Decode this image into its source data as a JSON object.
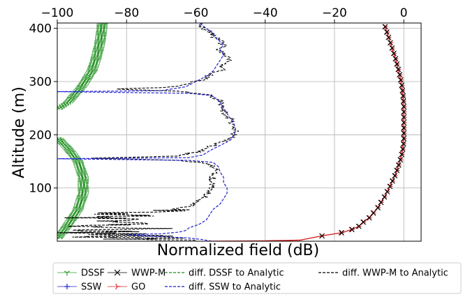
{
  "chart_data": {
    "type": "line",
    "title": "",
    "xlabel": "Normalized field (dB)",
    "ylabel": "Altitude (m)",
    "xlim": [
      -100,
      5
    ],
    "ylim": [
      0,
      410
    ],
    "x_axis_position": "top",
    "grid": true,
    "legend_placement": "below",
    "x_ticks": [
      {
        "value": -100,
        "label": "−100"
      },
      {
        "value": -80,
        "label": "−80"
      },
      {
        "value": -60,
        "label": "−60"
      },
      {
        "value": -40,
        "label": "−40"
      },
      {
        "value": -20,
        "label": "−20"
      },
      {
        "value": 0,
        "label": "0"
      }
    ],
    "y_ticks": [
      {
        "value": 100,
        "label": "100"
      },
      {
        "value": 200,
        "label": "200"
      },
      {
        "value": 300,
        "label": "300"
      },
      {
        "value": 400,
        "label": "400"
      }
    ],
    "colors": {
      "DSSF": "#2ca02c",
      "SSW": "#1f1fd0",
      "WWP-M": "#000000",
      "GO": "#d62728",
      "diff_DSSF": "#1f8f1f",
      "diff_SSW": "#1f1fd0",
      "diff_WWPM": "#000000"
    },
    "series": [
      {
        "name": "GO",
        "key": "GO",
        "style": "go",
        "points": [
          [
            -55.8,
            0
          ],
          [
            -40,
            0.8
          ],
          [
            -30,
            2
          ],
          [
            -23.8,
            10
          ],
          [
            -18,
            16
          ],
          [
            -15,
            22
          ],
          [
            -13,
            28
          ],
          [
            -11.7,
            36
          ],
          [
            -10,
            44
          ],
          [
            -8.8,
            53
          ],
          [
            -7.5,
            63
          ],
          [
            -6.6,
            73
          ],
          [
            -5.6,
            83
          ],
          [
            -4.8,
            93
          ],
          [
            -4,
            103
          ],
          [
            -3.3,
            113
          ],
          [
            -2.6,
            123
          ],
          [
            -2,
            133
          ],
          [
            -1.5,
            143
          ],
          [
            -1,
            153
          ],
          [
            -0.6,
            163
          ],
          [
            -0.3,
            173
          ],
          [
            -0.1,
            183
          ],
          [
            0,
            193
          ],
          [
            0,
            203
          ],
          [
            0,
            213
          ],
          [
            0,
            223
          ],
          [
            0,
            233
          ],
          [
            0,
            243
          ],
          [
            0,
            253
          ],
          [
            -0.1,
            263
          ],
          [
            -0.2,
            273
          ],
          [
            -0.4,
            283
          ],
          [
            -0.6,
            293
          ],
          [
            -0.9,
            303
          ],
          [
            -1.2,
            313
          ],
          [
            -1.6,
            323
          ],
          [
            -2,
            333
          ],
          [
            -2.4,
            343
          ],
          [
            -2.9,
            353
          ],
          [
            -3.4,
            363
          ],
          [
            -3.9,
            373
          ],
          [
            -4.4,
            383
          ],
          [
            -4.9,
            393
          ],
          [
            -5.4,
            403
          ]
        ]
      },
      {
        "name": "WWP-M",
        "key": "WWP-M",
        "style": "wwpm",
        "points": [
          [
            -23.6,
            10
          ],
          [
            -18,
            16
          ],
          [
            -15,
            22
          ],
          [
            -13,
            28
          ],
          [
            -11.7,
            36
          ],
          [
            -10,
            44
          ],
          [
            -8.8,
            53
          ],
          [
            -7.5,
            63
          ],
          [
            -6.6,
            73
          ],
          [
            -5.6,
            83
          ],
          [
            -4.8,
            93
          ],
          [
            -4,
            103
          ],
          [
            -3.3,
            113
          ],
          [
            -2.6,
            123
          ],
          [
            -2,
            133
          ],
          [
            -1.5,
            143
          ],
          [
            -1,
            153
          ],
          [
            -0.6,
            163
          ],
          [
            -0.3,
            173
          ],
          [
            -0.1,
            183
          ],
          [
            0,
            193
          ],
          [
            0,
            203
          ],
          [
            0,
            213
          ],
          [
            0,
            223
          ],
          [
            0,
            233
          ],
          [
            0,
            243
          ],
          [
            0,
            253
          ],
          [
            -0.1,
            263
          ],
          [
            -0.2,
            273
          ],
          [
            -0.4,
            283
          ],
          [
            -0.6,
            293
          ],
          [
            -0.9,
            303
          ],
          [
            -1.2,
            313
          ],
          [
            -1.6,
            323
          ],
          [
            -2,
            333
          ],
          [
            -2.4,
            343
          ],
          [
            -2.9,
            353
          ],
          [
            -3.4,
            363
          ],
          [
            -3.9,
            373
          ],
          [
            -4.4,
            383
          ],
          [
            -4.9,
            393
          ],
          [
            -5.4,
            403
          ]
        ]
      },
      {
        "name": "DSSF",
        "key": "DSSF",
        "style": "hidden",
        "points": []
      },
      {
        "name": "SSW",
        "key": "SSW",
        "style": "hidden",
        "points": []
      },
      {
        "name": "diff. DSSF to Analytic",
        "key": "diff_DSSF",
        "style": "wiggle_dssf",
        "segments": [
          {
            "y0": 248,
            "y1": 410,
            "centers": [
              [
                248,
                -100
              ],
              [
                260,
                -97
              ],
              [
                290,
                -93
              ],
              [
                320,
                -90
              ],
              [
                350,
                -88.5
              ],
              [
                380,
                -87.5
              ],
              [
                410,
                -87
              ]
            ],
            "amp": 1.6
          },
          {
            "y0": 5,
            "y1": 195,
            "centers": [
              [
                5,
                -100
              ],
              [
                30,
                -97
              ],
              [
                60,
                -94
              ],
              [
                90,
                -92.5
              ],
              [
                120,
                -92.5
              ],
              [
                150,
                -94
              ],
              [
                175,
                -97
              ],
              [
                195,
                -100
              ]
            ],
            "amp": 1.6
          }
        ]
      },
      {
        "name": "diff. SSW to Analytic",
        "key": "diff_SSW",
        "style": "curve",
        "points": [
          [
            -55.5,
            0
          ],
          [
            -58,
            3
          ],
          [
            -62,
            6
          ],
          [
            -68,
            8
          ],
          [
            -75,
            10
          ],
          [
            -80,
            12
          ],
          [
            -70,
            14
          ],
          [
            -65,
            17
          ],
          [
            -63,
            20
          ],
          [
            -62,
            25
          ],
          [
            -59,
            32
          ],
          [
            -57,
            40
          ],
          [
            -56,
            50
          ],
          [
            -55,
            60
          ],
          [
            -53,
            70
          ],
          [
            -52,
            80
          ],
          [
            -51,
            90
          ],
          [
            -51,
            100
          ],
          [
            -52,
            110
          ],
          [
            -52,
            120
          ],
          [
            -53,
            130
          ],
          [
            -53.5,
            140
          ],
          [
            -55,
            148
          ],
          [
            -62,
            152
          ],
          [
            -100,
            155
          ],
          [
            -62,
            157
          ],
          [
            -58,
            162
          ],
          [
            -56,
            170
          ],
          [
            -53,
            180
          ],
          [
            -50,
            190
          ],
          [
            -49,
            200
          ],
          [
            -48.5,
            210
          ],
          [
            -49,
            220
          ],
          [
            -50,
            230
          ],
          [
            -51,
            240
          ],
          [
            -52,
            250
          ],
          [
            -53,
            260
          ],
          [
            -54,
            268
          ],
          [
            -56,
            274
          ],
          [
            -62,
            278
          ],
          [
            -100,
            281
          ],
          [
            -70,
            283
          ],
          [
            -63,
            290
          ],
          [
            -60,
            300
          ],
          [
            -57,
            310
          ],
          [
            -55,
            320
          ],
          [
            -54,
            330
          ],
          [
            -53,
            340
          ],
          [
            -52,
            350
          ],
          [
            -53,
            360
          ],
          [
            -52,
            370
          ],
          [
            -54,
            380
          ],
          [
            -55,
            390
          ],
          [
            -57,
            400
          ],
          [
            -59,
            410
          ]
        ]
      },
      {
        "name": "diff. WWP-M to Analytic",
        "key": "diff_WWPM",
        "style": "noisy",
        "points": [
          [
            -60,
            2
          ],
          [
            -80,
            4
          ],
          [
            -66,
            6
          ],
          [
            -95,
            8
          ],
          [
            -70,
            10
          ],
          [
            -90,
            12
          ],
          [
            -75,
            14
          ],
          [
            -100,
            16
          ],
          [
            -78,
            18
          ],
          [
            -92,
            20
          ],
          [
            -74,
            24
          ],
          [
            -96,
            28
          ],
          [
            -76,
            32
          ],
          [
            -88,
            36
          ],
          [
            -74,
            40
          ],
          [
            -90,
            44
          ],
          [
            -78,
            48
          ],
          [
            -86,
            52
          ],
          [
            -70,
            56
          ],
          [
            -64,
            62
          ],
          [
            -60,
            70
          ],
          [
            -58,
            80
          ],
          [
            -56,
            90
          ],
          [
            -55,
            100
          ],
          [
            -56,
            110
          ],
          [
            -55,
            120
          ],
          [
            -54,
            130
          ],
          [
            -55,
            140
          ],
          [
            -58,
            147
          ],
          [
            -66,
            152
          ],
          [
            -90,
            156
          ],
          [
            -66,
            160
          ],
          [
            -62,
            165
          ],
          [
            -58,
            170
          ],
          [
            -55,
            180
          ],
          [
            -51,
            190
          ],
          [
            -49,
            200
          ],
          [
            -48.5,
            210
          ],
          [
            -49,
            220
          ],
          [
            -50,
            230
          ],
          [
            -51.5,
            240
          ],
          [
            -52,
            250
          ],
          [
            -53,
            260
          ],
          [
            -54,
            268
          ],
          [
            -57,
            276
          ],
          [
            -66,
            282
          ],
          [
            -84,
            286
          ],
          [
            -68,
            289
          ],
          [
            -62,
            296
          ],
          [
            -58,
            304
          ],
          [
            -56,
            312
          ],
          [
            -53,
            320
          ],
          [
            -52,
            330
          ],
          [
            -50,
            340
          ],
          [
            -51,
            350
          ],
          [
            -53,
            360
          ],
          [
            -52,
            370
          ],
          [
            -54,
            380
          ],
          [
            -55,
            390
          ],
          [
            -58,
            400
          ],
          [
            -58,
            410
          ]
        ]
      }
    ]
  },
  "legend": [
    {
      "label": "DSSF",
      "key": "DSSF",
      "marker": "tri_down",
      "line": "solid"
    },
    {
      "label": "SSW",
      "key": "SSW",
      "marker": "plus",
      "line": "solid"
    },
    {
      "label": "WWP-M",
      "key": "WWP-M",
      "marker": "x",
      "line": "solid"
    },
    {
      "label": "GO",
      "key": "GO",
      "marker": "tri_right",
      "line": "solid"
    },
    {
      "label": "diff. DSSF to Analytic",
      "key": "diff_DSSF",
      "marker": "none",
      "line": "dashed"
    },
    {
      "label": "diff. SSW to Analytic",
      "key": "diff_SSW",
      "marker": "none",
      "line": "dashed"
    },
    {
      "label": "diff. WWP-M to Analytic",
      "key": "diff_WWPM",
      "marker": "none",
      "line": "dashed"
    }
  ]
}
